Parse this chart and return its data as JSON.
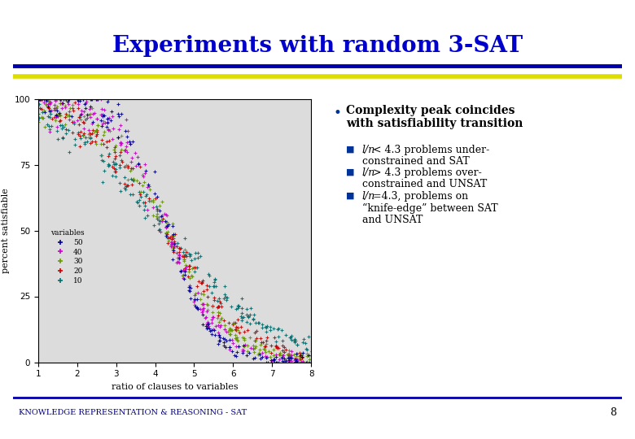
{
  "title": "Experiments with random 3-SAT",
  "title_color": "#0000CC",
  "slide_bg": "#FFFFFF",
  "xlabel": "ratio of clauses to variables",
  "ylabel": "percent satisfiable",
  "xlim": [
    1,
    8
  ],
  "ylim": [
    0,
    100
  ],
  "xticks": [
    1,
    2,
    3,
    4,
    5,
    6,
    7,
    8
  ],
  "yticks": [
    0,
    25,
    50,
    75,
    100
  ],
  "transition": 4.3,
  "variables": [
    10,
    20,
    30,
    40,
    50
  ],
  "var_labels": [
    "10",
    "20",
    "30",
    "40",
    "50"
  ],
  "colors": [
    "#007070",
    "#CC0000",
    "#669900",
    "#CC00CC",
    "#000099"
  ],
  "footer": "KNOWLEDGE REPRESENTATION & REASONING - SAT",
  "footer_color": "#000080",
  "page_number": "8",
  "bullet_text_line1": "Complexity peak coincides",
  "bullet_text_line2": "with satisfiability transition",
  "sub_bullet1_italic": "l/n",
  "sub_bullet1_rest": " < 4.3 problems under-\nconstrained and SAT",
  "sub_bullet2_italic": "l/n",
  "sub_bullet2_rest": " > 4.3 problems over-\nconstrained and UNSAT",
  "sub_bullet3_italic": "l/n",
  "sub_bullet3_rest": "=4.3, problems on\n“knife-edge” between SAT\nand UNSAT",
  "sub_bullet_color": "#003399",
  "plot_bg": "#DCDCDC",
  "line_blue": "#0000AA",
  "line_yellow": "#DDDD00"
}
